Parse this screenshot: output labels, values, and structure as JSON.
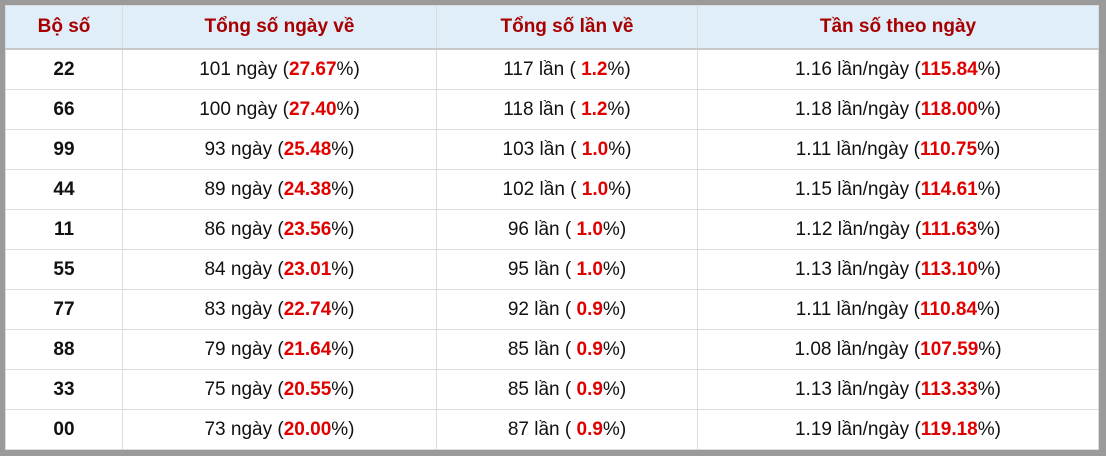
{
  "table": {
    "header": [
      "Bộ số",
      "Tổng số ngày về",
      "Tổng số lần về",
      "Tần số theo ngày"
    ],
    "rows": [
      {
        "pair": "22",
        "days": {
          "before": "101 ngày (",
          "red": "27.67",
          "after": "%)"
        },
        "times": {
          "before": "117 lần ( ",
          "red": "1.2",
          "after": "%)"
        },
        "freq": {
          "before": "1.16 lần/ngày (",
          "red": "115.84",
          "after": "%)"
        }
      },
      {
        "pair": "66",
        "days": {
          "before": "100 ngày (",
          "red": "27.40",
          "after": "%)"
        },
        "times": {
          "before": "118 lần ( ",
          "red": "1.2",
          "after": "%)"
        },
        "freq": {
          "before": "1.18 lần/ngày (",
          "red": "118.00",
          "after": "%)"
        }
      },
      {
        "pair": "99",
        "days": {
          "before": "93 ngày (",
          "red": "25.48",
          "after": "%)"
        },
        "times": {
          "before": "103 lần ( ",
          "red": "1.0",
          "after": "%)"
        },
        "freq": {
          "before": "1.11 lần/ngày (",
          "red": "110.75",
          "after": "%)"
        }
      },
      {
        "pair": "44",
        "days": {
          "before": "89 ngày (",
          "red": "24.38",
          "after": "%)"
        },
        "times": {
          "before": "102 lần ( ",
          "red": "1.0",
          "after": "%)"
        },
        "freq": {
          "before": "1.15 lần/ngày (",
          "red": "114.61",
          "after": "%)"
        }
      },
      {
        "pair": "11",
        "days": {
          "before": "86 ngày (",
          "red": "23.56",
          "after": "%)"
        },
        "times": {
          "before": "96 lần ( ",
          "red": "1.0",
          "after": "%)"
        },
        "freq": {
          "before": "1.12 lần/ngày (",
          "red": "111.63",
          "after": "%)"
        }
      },
      {
        "pair": "55",
        "days": {
          "before": "84 ngày (",
          "red": "23.01",
          "after": "%)"
        },
        "times": {
          "before": "95 lần ( ",
          "red": "1.0",
          "after": "%)"
        },
        "freq": {
          "before": "1.13 lần/ngày (",
          "red": "113.10",
          "after": "%)"
        }
      },
      {
        "pair": "77",
        "days": {
          "before": "83 ngày (",
          "red": "22.74",
          "after": "%)"
        },
        "times": {
          "before": "92 lần ( ",
          "red": "0.9",
          "after": "%)"
        },
        "freq": {
          "before": "1.11 lần/ngày (",
          "red": "110.84",
          "after": "%)"
        }
      },
      {
        "pair": "88",
        "days": {
          "before": "79 ngày (",
          "red": "21.64",
          "after": "%)"
        },
        "times": {
          "before": "85 lần ( ",
          "red": "0.9",
          "after": "%)"
        },
        "freq": {
          "before": "1.08 lần/ngày (",
          "red": "107.59",
          "after": "%)"
        }
      },
      {
        "pair": "33",
        "days": {
          "before": "75 ngày (",
          "red": "20.55",
          "after": "%)"
        },
        "times": {
          "before": "85 lần ( ",
          "red": "0.9",
          "after": "%)"
        },
        "freq": {
          "before": "1.13 lần/ngày (",
          "red": "113.33",
          "after": "%)"
        }
      },
      {
        "pair": "00",
        "days": {
          "before": "73 ngày (",
          "red": "20.00",
          "after": "%)"
        },
        "times": {
          "before": "87 lần ( ",
          "red": "0.9",
          "after": "%)"
        },
        "freq": {
          "before": "1.19 lần/ngày (",
          "red": "119.18",
          "after": "%)"
        }
      }
    ]
  }
}
